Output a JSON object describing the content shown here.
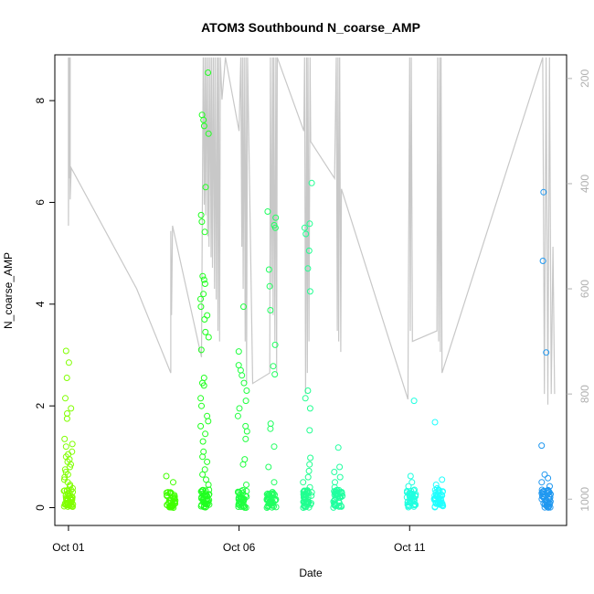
{
  "chart_data": {
    "type": "scatter",
    "title": "ATOM3 Southbound N_coarse_AMP",
    "xlabel": "Date",
    "ylabel": "N_coarse_AMP",
    "x_ticks": [
      "Oct 01",
      "Oct 06",
      "Oct 11"
    ],
    "x_tick_days": [
      1,
      6,
      11
    ],
    "xlim_days": [
      0.6,
      15.6
    ],
    "ylim": [
      -0.35,
      8.9
    ],
    "y_ticks": [
      0,
      2,
      4,
      6,
      8
    ],
    "y2_ticks": [
      200,
      400,
      600,
      800,
      1000
    ],
    "y2_lim": [
      1050,
      155
    ],
    "y2_line_color": "#c8c8c8",
    "grid": false,
    "series": [
      {
        "day": 1.0,
        "color": "#80ff00",
        "outliers": [
          3.08,
          2.85,
          2.55,
          2.15,
          1.95,
          1.85,
          1.75,
          1.35,
          1.25,
          1.2,
          1.1,
          1.05,
          1.0,
          0.95,
          0.9,
          0.85,
          0.8,
          0.75,
          0.7,
          0.65,
          0.6,
          0.55,
          0.5,
          0.45,
          0.42,
          0.38,
          0.33,
          0.28,
          0.22,
          0.15,
          0.1,
          0.05,
          0.02
        ]
      },
      {
        "day": 4.0,
        "color": "#40ff00",
        "outliers": [
          0.62,
          0.5,
          0.3,
          0.22,
          0.15,
          0.1,
          0.06,
          0.03
        ]
      },
      {
        "day": 5.0,
        "color": "#20ff20",
        "outliers": [
          8.55,
          7.72,
          7.62,
          7.5,
          7.35,
          6.3,
          5.75,
          5.62,
          5.42,
          4.55,
          4.48,
          4.4,
          4.2,
          4.1,
          3.95,
          3.78,
          3.7,
          3.45,
          3.35,
          3.1,
          2.55,
          2.45,
          2.4,
          2.15,
          2.0,
          1.8,
          1.7,
          1.6,
          1.45,
          1.3,
          1.1,
          1.0,
          0.9,
          0.75,
          0.65,
          0.55,
          0.45,
          0.35,
          0.25,
          0.15,
          0.08,
          0.03
        ]
      },
      {
        "day": 6.1,
        "color": "#20ff40",
        "outliers": [
          3.95,
          3.07,
          2.8,
          2.7,
          2.6,
          2.45,
          2.3,
          2.1,
          1.95,
          1.8,
          1.6,
          1.5,
          1.35,
          0.95,
          0.85,
          0.45,
          0.3,
          0.2,
          0.12,
          0.06,
          0.02
        ]
      },
      {
        "day": 6.95,
        "color": "#20ff60",
        "outliers": [
          5.82,
          5.7,
          5.55,
          5.5,
          4.68,
          4.35,
          3.88,
          3.2,
          2.78,
          2.62,
          1.65,
          1.55,
          1.2,
          0.8,
          0.5,
          0.3,
          0.18,
          0.1,
          0.05,
          0.02
        ]
      },
      {
        "day": 8.0,
        "color": "#20ff90",
        "outliers": [
          6.38,
          5.58,
          5.5,
          5.38,
          5.05,
          4.7,
          4.25,
          2.3,
          2.15,
          1.95,
          1.52,
          0.98,
          0.85,
          0.72,
          0.6,
          0.5,
          0.4,
          0.3,
          0.2,
          0.12,
          0.06,
          0.02
        ]
      },
      {
        "day": 8.9,
        "color": "#20ffa0",
        "outliers": [
          1.18,
          0.8,
          0.7,
          0.6,
          0.5,
          0.4,
          0.3,
          0.2,
          0.12,
          0.06,
          0.02
        ]
      },
      {
        "day": 11.05,
        "color": "#20ffe0",
        "outliers": [
          2.1,
          0.62,
          0.5,
          0.42,
          0.35,
          0.28,
          0.2,
          0.12,
          0.06,
          0.02
        ]
      },
      {
        "day": 11.85,
        "color": "#20ffff",
        "outliers": [
          1.68,
          0.55,
          0.45,
          0.38,
          0.3,
          0.22,
          0.15,
          0.08,
          0.03
        ]
      },
      {
        "day": 15.0,
        "color": "#2098f0",
        "outliers": [
          6.2,
          4.85,
          3.05,
          1.22,
          0.65,
          0.58,
          0.5,
          0.42,
          0.35,
          0.28,
          0.2,
          0.12,
          0.06,
          0.02
        ]
      }
    ],
    "y2_path": [
      [
        1.0,
        160
      ],
      [
        1.0,
        480
      ],
      [
        1.02,
        160
      ],
      [
        1.02,
        390
      ],
      [
        1.05,
        160
      ],
      [
        1.05,
        430
      ],
      [
        1.08,
        370
      ],
      [
        3.0,
        600
      ],
      [
        4.0,
        760
      ],
      [
        4.0,
        490
      ],
      [
        4.02,
        650
      ],
      [
        4.05,
        480
      ],
      [
        4.9,
        730
      ],
      [
        4.95,
        160
      ],
      [
        4.98,
        440
      ],
      [
        5.0,
        160
      ],
      [
        5.02,
        460
      ],
      [
        5.05,
        160
      ],
      [
        5.08,
        500
      ],
      [
        5.1,
        160
      ],
      [
        5.12,
        520
      ],
      [
        5.15,
        160
      ],
      [
        5.18,
        540
      ],
      [
        5.2,
        160
      ],
      [
        5.22,
        560
      ],
      [
        5.25,
        160
      ],
      [
        5.28,
        600
      ],
      [
        5.3,
        160
      ],
      [
        5.33,
        620
      ],
      [
        5.36,
        160
      ],
      [
        5.38,
        680
      ],
      [
        5.4,
        160
      ],
      [
        5.43,
        700
      ],
      [
        5.45,
        160
      ],
      [
        5.5,
        240
      ],
      [
        5.6,
        160
      ],
      [
        6.0,
        300
      ],
      [
        6.05,
        160
      ],
      [
        6.08,
        520
      ],
      [
        6.1,
        160
      ],
      [
        6.12,
        600
      ],
      [
        6.15,
        160
      ],
      [
        6.18,
        700
      ],
      [
        6.2,
        160
      ],
      [
        6.22,
        780
      ],
      [
        6.25,
        160
      ],
      [
        6.4,
        780
      ],
      [
        6.9,
        760
      ],
      [
        6.92,
        160
      ],
      [
        6.95,
        600
      ],
      [
        6.98,
        160
      ],
      [
        7.0,
        650
      ],
      [
        7.02,
        160
      ],
      [
        7.05,
        700
      ],
      [
        7.08,
        160
      ],
      [
        7.1,
        760
      ],
      [
        7.12,
        160
      ],
      [
        7.9,
        300
      ],
      [
        7.92,
        160
      ],
      [
        7.95,
        800
      ],
      [
        7.98,
        160
      ],
      [
        8.0,
        760
      ],
      [
        8.02,
        160
      ],
      [
        8.05,
        700
      ],
      [
        8.08,
        160
      ],
      [
        8.1,
        320
      ],
      [
        8.8,
        390
      ],
      [
        8.85,
        160
      ],
      [
        8.88,
        680
      ],
      [
        8.9,
        160
      ],
      [
        8.92,
        700
      ],
      [
        8.95,
        160
      ],
      [
        8.98,
        720
      ],
      [
        9.0,
        410
      ],
      [
        10.95,
        810
      ],
      [
        10.97,
        550
      ],
      [
        11.0,
        160
      ],
      [
        11.02,
        680
      ],
      [
        11.05,
        160
      ],
      [
        11.08,
        700
      ],
      [
        11.8,
        680
      ],
      [
        11.82,
        160
      ],
      [
        11.85,
        700
      ],
      [
        11.88,
        160
      ],
      [
        11.9,
        720
      ],
      [
        11.92,
        160
      ],
      [
        11.95,
        760
      ],
      [
        14.9,
        160
      ],
      [
        14.95,
        800
      ],
      [
        15.0,
        160
      ],
      [
        15.05,
        820
      ],
      [
        15.1,
        160
      ],
      [
        15.15,
        800
      ],
      [
        15.2,
        520
      ],
      [
        15.25,
        800
      ]
    ]
  }
}
